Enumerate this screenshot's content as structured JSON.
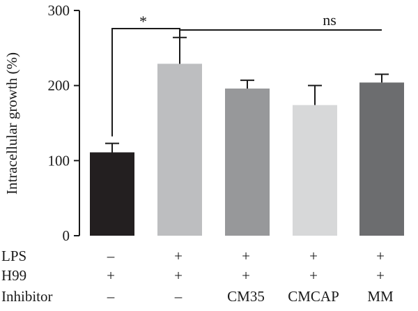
{
  "chart_data": {
    "type": "bar",
    "title": "",
    "xlabel": "",
    "ylabel": "Intracellular growth (%)",
    "ylim": [
      0,
      300
    ],
    "yticks": [
      0,
      100,
      200,
      300
    ],
    "grid": false,
    "legend": "none",
    "values": [
      111,
      229,
      196,
      174,
      204
    ],
    "errors": [
      12,
      35,
      11,
      26,
      11
    ],
    "colors": [
      "#231f20",
      "#bdbec0",
      "#97989a",
      "#d7d8d9",
      "#6c6d6f"
    ],
    "condition_rows": [
      {
        "label": "LPS",
        "values": [
          "–",
          "+",
          "+",
          "+",
          "+"
        ]
      },
      {
        "label": "H99",
        "values": [
          "+",
          "+",
          "+",
          "+",
          "+"
        ]
      },
      {
        "label": "Inhibitor",
        "values": [
          "–",
          "–",
          "CM35",
          "CMCAP",
          "MM"
        ]
      }
    ],
    "annotations": [
      {
        "label": "*",
        "from_bar": 0,
        "to_bar": 1
      },
      {
        "label": "ns",
        "from_bar": 1,
        "to_bar": 4
      }
    ]
  }
}
